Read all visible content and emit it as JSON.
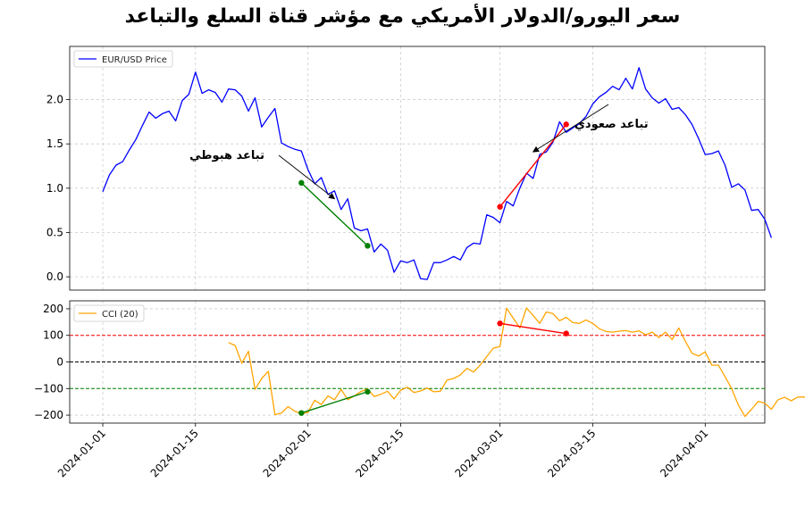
{
  "chart_data": [
    {
      "type": "line",
      "title": "سعر اليورو/الدولار الأمريكي مع مؤشر قناة السلع والتباعد",
      "xlabel": "",
      "ylabel": "",
      "ylim": [
        -0.15,
        2.6
      ],
      "yticks": [
        0.0,
        0.5,
        1.0,
        1.5,
        2.0
      ],
      "ytick_labels": [
        "0.0",
        "0.5",
        "1.0",
        "1.5",
        "2.0"
      ],
      "xlim": [
        "2023-12-27",
        "2024-04-10"
      ],
      "xticks": [
        "2024-01-01",
        "2024-01-15",
        "2024-02-01",
        "2024-02-15",
        "2024-03-01",
        "2024-03-15",
        "2024-04-01"
      ],
      "grid": true,
      "legend": "top-left",
      "colors": {
        "price": "#0000ff",
        "bearish": "#008000",
        "bullish": "#ff0000"
      },
      "series": [
        {
          "name": "EUR/USD Price",
          "start_date": "2024-01-01",
          "step_days": 1,
          "values": [
            0.96,
            1.15,
            1.26,
            1.3,
            1.43,
            1.55,
            1.71,
            1.86,
            1.79,
            1.84,
            1.87,
            1.76,
            1.99,
            2.06,
            2.31,
            2.07,
            2.11,
            2.08,
            1.97,
            2.12,
            2.11,
            2.04,
            1.87,
            2.02,
            1.69,
            1.8,
            1.9,
            1.51,
            1.47,
            1.44,
            1.42,
            1.21,
            1.05,
            1.12,
            0.93,
            0.97,
            0.76,
            0.88,
            0.55,
            0.52,
            0.54,
            0.28,
            0.37,
            0.3,
            0.05,
            0.18,
            0.16,
            0.19,
            -0.02,
            -0.03,
            0.16,
            0.16,
            0.19,
            0.23,
            0.19,
            0.33,
            0.38,
            0.37,
            0.7,
            0.67,
            0.61,
            0.85,
            0.8,
            1.0,
            1.17,
            1.11,
            1.38,
            1.41,
            1.52,
            1.75,
            1.63,
            1.68,
            1.73,
            1.81,
            1.95,
            2.03,
            2.08,
            2.15,
            2.11,
            2.24,
            2.12,
            2.36,
            2.12,
            2.02,
            1.96,
            2.01,
            1.89,
            1.91,
            1.83,
            1.72,
            1.56,
            1.38,
            1.39,
            1.42,
            1.26,
            1.01,
            1.05,
            0.98,
            0.75,
            0.76,
            0.65,
            0.44
          ]
        }
      ],
      "divergence_lines": [
        {
          "kind": "bearish",
          "x": [
            "2024-01-31",
            "2024-02-10"
          ],
          "y": [
            1.06,
            0.35
          ]
        },
        {
          "kind": "bullish",
          "x": [
            "2024-03-01",
            "2024-03-11"
          ],
          "y": [
            0.79,
            1.72
          ]
        }
      ],
      "annotations": [
        {
          "text": "تباعد هبوطي",
          "point": [
            "2024-02-05",
            0.88
          ]
        },
        {
          "text": "تباعد صعودي",
          "point": [
            "2024-03-06",
            1.41
          ]
        }
      ]
    },
    {
      "type": "line",
      "title": "",
      "xlabel": "",
      "ylabel": "",
      "ylim": [
        -230,
        230
      ],
      "yticks": [
        -200,
        -100,
        0,
        100,
        200
      ],
      "ytick_labels": [
        "−200",
        "−100",
        "0",
        "100",
        "200"
      ],
      "grid": true,
      "legend": "top-left",
      "colors": {
        "cci": "#ffa500",
        "overbought": "#ff0000",
        "zero": "#000000",
        "oversold": "#008000"
      },
      "hlines": [
        {
          "y": 100,
          "color": "#ff0000"
        },
        {
          "y": 0,
          "color": "#000000"
        },
        {
          "y": -100,
          "color": "#008000"
        }
      ],
      "series": [
        {
          "name": "CCI (20)",
          "start_date": "2024-01-20",
          "step_days": 1,
          "values": [
            73,
            62,
            -5,
            40,
            -103,
            -62,
            -35,
            -198,
            -192,
            -168,
            -185,
            -195,
            -190,
            -144,
            -160,
            -128,
            -142,
            -103,
            -142,
            -128,
            -111,
            -101,
            -130,
            -122,
            -110,
            -139,
            -106,
            -95,
            -115,
            -109,
            -98,
            -112,
            -110,
            -68,
            -62,
            -49,
            -24,
            -38,
            -12,
            20,
            52,
            58,
            202,
            165,
            128,
            203,
            175,
            145,
            188,
            182,
            155,
            168,
            148,
            145,
            158,
            145,
            125,
            115,
            112,
            116,
            118,
            112,
            117,
            102,
            112,
            92,
            112,
            84,
            128,
            78,
            33,
            22,
            38,
            -12,
            -12,
            -55,
            -101,
            -162,
            -205,
            -178,
            -148,
            -155,
            -178,
            -142,
            -133,
            -146,
            -132,
            -132,
            -145
          ]
        }
      ],
      "divergence_lines": [
        {
          "kind": "bearish",
          "x": [
            "2024-01-31",
            "2024-02-10"
          ],
          "y": [
            -192,
            -112
          ]
        },
        {
          "kind": "bullish",
          "x": [
            "2024-03-01",
            "2024-03-11"
          ],
          "y": [
            145,
            107
          ]
        }
      ]
    }
  ]
}
